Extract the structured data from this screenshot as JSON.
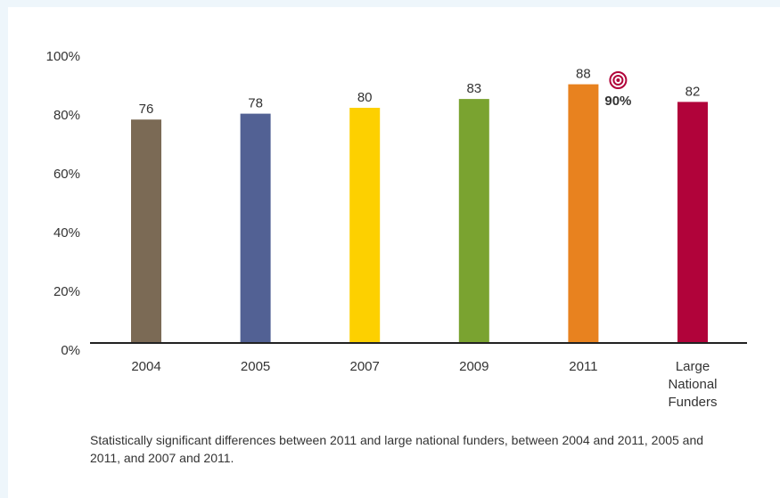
{
  "chart_data": {
    "type": "bar",
    "categories": [
      "2004",
      "2005",
      "2007",
      "2009",
      "2011",
      "Large National Funders"
    ],
    "category_lines": [
      [
        "2004"
      ],
      [
        "2005"
      ],
      [
        "2007"
      ],
      [
        "2009"
      ],
      [
        "2011"
      ],
      [
        "Large",
        "National",
        "Funders"
      ]
    ],
    "values": [
      76,
      78,
      80,
      83,
      88,
      82
    ],
    "value_labels": [
      "76",
      "78",
      "80",
      "83",
      "88",
      "82"
    ],
    "bar_colors": [
      "#7b6a55",
      "#526194",
      "#fdd000",
      "#7aa330",
      "#e8821f",
      "#b1033a"
    ],
    "ylim": [
      0,
      100
    ],
    "yticks": [
      0,
      20,
      40,
      60,
      80,
      100
    ],
    "ytick_labels": [
      "0%",
      "20%",
      "40%",
      "60%",
      "80%",
      "100%"
    ],
    "target": {
      "value": 90,
      "label": "90%",
      "icon": "target-icon",
      "color": "#b1033a",
      "category": "2011"
    },
    "title": "",
    "xlabel": "",
    "ylabel": "",
    "grid": false,
    "legend": "none"
  },
  "caption": "Statistically significant differences between 2011 and large national funders, between 2004 and 2011, 2005 and 2011, and 2007 and 2011."
}
